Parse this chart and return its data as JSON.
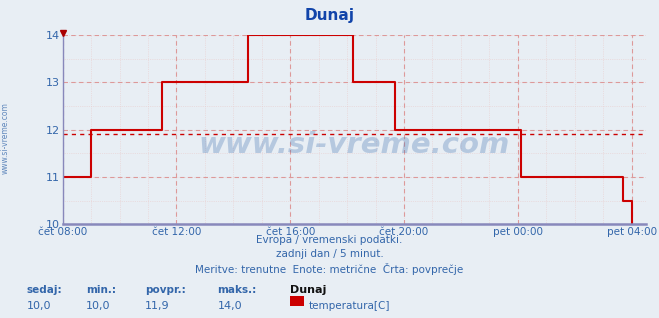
{
  "title": "Dunaj",
  "bg_color": "#e8eef4",
  "line_color": "#cc0000",
  "avg_value": 11.9,
  "ylim": [
    10,
    14
  ],
  "yticks": [
    10,
    11,
    12,
    13,
    14
  ],
  "xlim": [
    8,
    28.5
  ],
  "xtick_positions": [
    8,
    12,
    16,
    20,
    24,
    28
  ],
  "xtick_labels": [
    "čet 08:00",
    "čet 12:00",
    "čet 16:00",
    "čet 20:00",
    "pet 00:00",
    "pet 04:00"
  ],
  "major_grid_color": "#dd9999",
  "minor_grid_color": "#e8cccc",
  "axis_color": "#8888bb",
  "text_color": "#3366aa",
  "title_color": "#1144aa",
  "subtitle1": "Evropa / vremenski podatki.",
  "subtitle2": "zadnji dan / 5 minut.",
  "subtitle3": "Meritve: trenutne  Enote: metrične  Črta: povprečje",
  "watermark": "www.si-vreme.com",
  "sidebar": "www.si-vreme.com",
  "stat_labels": [
    "sedaj:",
    "min.:",
    "povpr.:",
    "maks.:",
    "Dunaj"
  ],
  "stat_values": [
    "10,0",
    "10,0",
    "11,9",
    "14,0"
  ],
  "series_label": "temperatura[C]",
  "legend_color": "#cc0000",
  "step_x": [
    8.0,
    9.0,
    11.5,
    14.5,
    18.2,
    19.7,
    24.1,
    25.5,
    27.7,
    28.0
  ],
  "step_y": [
    11.0,
    12.0,
    13.0,
    14.0,
    13.0,
    12.0,
    11.0,
    11.0,
    10.5,
    10.0
  ]
}
